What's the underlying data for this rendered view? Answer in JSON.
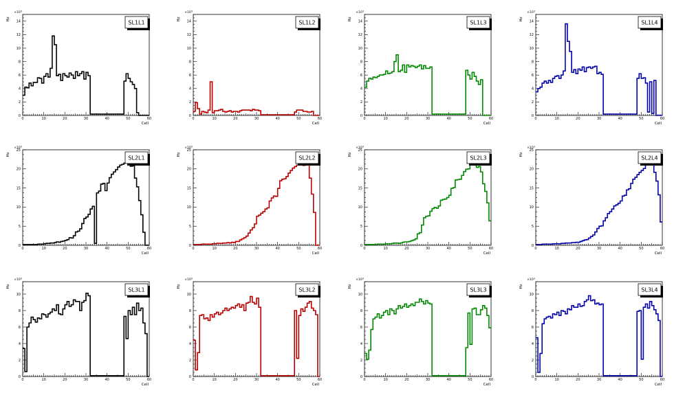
{
  "chart_data": [
    {
      "type": "histogram",
      "title": "SL1L1",
      "color": "#000000",
      "ylabel": "Hz",
      "xlabel": "Cell",
      "exponent": "3",
      "xlim": [
        0,
        60
      ],
      "ylim": [
        0,
        15
      ],
      "yticks": [
        0,
        2,
        4,
        6,
        8,
        10,
        12,
        14
      ],
      "values": [
        3.0,
        4.2,
        4.1,
        4.8,
        4.4,
        4.9,
        4.9,
        5.6,
        5.5,
        4.8,
        5.8,
        6.2,
        5.7,
        7.0,
        11.8,
        10.5,
        5.9,
        6.1,
        5.2,
        6.2,
        5.9,
        5.7,
        6.3,
        6.0,
        5.5,
        6.5,
        5.9,
        6.2,
        6.5,
        5.4,
        6.4,
        5.9,
        0.2,
        0.2,
        0.2,
        0.2,
        0.2,
        0.2,
        0.2,
        0.2,
        0.2,
        0.2,
        0.2,
        0.2,
        0.2,
        0.2,
        0.2,
        0.2,
        5.1,
        6.2,
        5.5,
        5.0,
        4.6,
        4.0,
        0.4,
        0,
        0,
        0,
        0,
        0
      ]
    },
    {
      "type": "histogram",
      "title": "SL1L2",
      "color": "#bb0000",
      "ylabel": "Hz",
      "xlabel": "Cell",
      "exponent": "3",
      "xlim": [
        0,
        60
      ],
      "ylim": [
        0,
        15
      ],
      "yticks": [
        0,
        2,
        4,
        6,
        8,
        10,
        12,
        14
      ],
      "values": [
        0.6,
        1.9,
        1.0,
        0.2,
        0.6,
        0.5,
        0.4,
        0.8,
        5.0,
        0.4,
        0.7,
        0.7,
        0.8,
        0.9,
        0.6,
        0.5,
        0.6,
        0.7,
        0.5,
        0.6,
        0.6,
        0.5,
        0.7,
        0.8,
        0.8,
        0.8,
        0.8,
        0.7,
        0.9,
        0.8,
        0.8,
        0.7,
        0.1,
        0.1,
        0.1,
        0.1,
        0.1,
        0.1,
        0.1,
        0.1,
        0.1,
        0.1,
        0.1,
        0.1,
        0.1,
        0.1,
        0.1,
        0.1,
        0.5,
        0.8,
        0.8,
        0.8,
        0.6,
        0.6,
        0.5,
        0.5,
        0.6,
        0,
        0,
        0
      ]
    },
    {
      "type": "histogram",
      "title": "SL1L3",
      "color": "#008800",
      "ylabel": "Hz",
      "xlabel": "Cell",
      "exponent": "3",
      "xlim": [
        0,
        60
      ],
      "ylim": [
        0,
        15
      ],
      "yticks": [
        0,
        2,
        4,
        6,
        8,
        10,
        12,
        14
      ],
      "values": [
        4.2,
        5.1,
        5.5,
        5.4,
        5.7,
        5.6,
        5.8,
        6.0,
        6.0,
        6.1,
        6.6,
        6.2,
        6.3,
        6.5,
        8.0,
        9.0,
        6.5,
        6.7,
        7.5,
        6.4,
        7.5,
        7.2,
        7.4,
        7.3,
        7.1,
        7.3,
        7.5,
        6.9,
        7.4,
        7.0,
        7.0,
        7.2,
        0.2,
        0.2,
        0.2,
        0.2,
        0.2,
        0.2,
        0.2,
        0.2,
        0.2,
        0.2,
        0.2,
        0.2,
        0.2,
        0.2,
        0.2,
        0.2,
        6.7,
        6.0,
        5.4,
        6.4,
        5.8,
        5.1,
        4.6,
        5.3,
        0,
        0,
        0,
        0
      ]
    },
    {
      "type": "histogram",
      "title": "SL1L4",
      "color": "#0000aa",
      "ylabel": "Hz",
      "xlabel": "Cell",
      "exponent": "3",
      "xlim": [
        0,
        60
      ],
      "ylim": [
        0,
        15
      ],
      "yticks": [
        0,
        2,
        4,
        6,
        8,
        10,
        12,
        14
      ],
      "values": [
        3.5,
        4.0,
        4.2,
        4.8,
        5.1,
        4.8,
        5.2,
        4.9,
        5.5,
        5.8,
        5.9,
        5.5,
        6.0,
        6.6,
        13.6,
        11.0,
        9.5,
        6.4,
        6.8,
        6.2,
        6.9,
        6.7,
        7.2,
        6.5,
        7.1,
        7.2,
        7.0,
        7.2,
        7.3,
        6.2,
        6.4,
        6.1,
        0.2,
        0.2,
        0.2,
        0.2,
        0.2,
        0.2,
        0.2,
        0.2,
        0.2,
        0.2,
        0.2,
        0.2,
        0.2,
        0.2,
        0.2,
        0.2,
        5.5,
        6.2,
        5.5,
        5.6,
        4.8,
        0.5,
        5.0,
        0.3,
        5.2,
        0,
        0,
        0
      ]
    },
    {
      "type": "histogram",
      "title": "SL2L1",
      "color": "#000000",
      "ylabel": "Hz",
      "xlabel": "Cell",
      "exponent": "3",
      "xlim": [
        0,
        60
      ],
      "ylim": [
        0,
        25
      ],
      "yticks": [
        0,
        5,
        10,
        15,
        20,
        25
      ],
      "values": [
        0.2,
        0.2,
        0.2,
        0.2,
        0.2,
        0.2,
        0.2,
        0.3,
        0.3,
        0.3,
        0.4,
        0.5,
        0.5,
        0.6,
        0.6,
        0.7,
        0.9,
        0.8,
        1.0,
        1.1,
        1.3,
        1.5,
        2.0,
        1.9,
        2.5,
        3.5,
        3.7,
        4.3,
        5.7,
        7.0,
        7.4,
        8.1,
        9.5,
        10.2,
        0.5,
        13.7,
        14.2,
        16.0,
        16.2,
        14.3,
        16.3,
        17.7,
        18.6,
        19.2,
        19.8,
        20.5,
        21.0,
        21.2,
        21.5,
        21.6,
        21.6,
        20.7,
        20.8,
        17.6,
        15.3,
        11.7,
        8.0,
        3.4,
        0,
        0
      ]
    },
    {
      "type": "histogram",
      "title": "SL2L2",
      "color": "#bb0000",
      "ylabel": "Hz",
      "xlabel": "Cell",
      "exponent": "3",
      "xlim": [
        0,
        60
      ],
      "ylim": [
        0,
        25
      ],
      "yticks": [
        0,
        5,
        10,
        15,
        20,
        25
      ],
      "values": [
        0.2,
        0.2,
        0.2,
        0.2,
        0.3,
        0.3,
        0.3,
        0.3,
        0.3,
        0.4,
        0.4,
        0.5,
        0.5,
        0.5,
        0.6,
        0.6,
        0.7,
        0.6,
        0.8,
        0.7,
        1.0,
        1.0,
        1.4,
        1.7,
        2.0,
        2.4,
        3.2,
        4.0,
        4.6,
        5.6,
        7.6,
        7.9,
        8.4,
        8.8,
        9.5,
        9.8,
        11.6,
        12.4,
        12.9,
        12.8,
        14.9,
        16.9,
        17.3,
        17.4,
        18.0,
        18.9,
        19.6,
        20.2,
        20.6,
        21.0,
        21.9,
        21.5,
        20.9,
        21.0,
        21.2,
        17.6,
        13.4,
        8.6,
        0,
        0
      ]
    },
    {
      "type": "histogram",
      "title": "SL2L3",
      "color": "#008800",
      "ylabel": "Hz",
      "xlabel": "Cell",
      "exponent": "3",
      "xlim": [
        0,
        60
      ],
      "ylim": [
        0,
        25
      ],
      "yticks": [
        0,
        5,
        10,
        15,
        20,
        25
      ],
      "values": [
        0.2,
        0.2,
        0.2,
        0.2,
        0.2,
        0.2,
        0.3,
        0.3,
        0.3,
        0.3,
        0.4,
        0.4,
        0.4,
        0.5,
        0.6,
        0.6,
        0.5,
        0.6,
        0.8,
        0.9,
        0.9,
        1.0,
        1.2,
        1.4,
        1.7,
        3.0,
        3.3,
        5.3,
        7.2,
        7.6,
        7.7,
        8.9,
        9.6,
        9.9,
        9.7,
        10.3,
        11.8,
        12.0,
        12.1,
        12.5,
        13.1,
        14.9,
        15.1,
        17.1,
        17.2,
        17.3,
        18.3,
        19.3,
        19.9,
        20.0,
        21.0,
        21.5,
        21.3,
        20.4,
        20.6,
        19.2,
        16.1,
        14.1,
        11.1,
        6.4
      ]
    },
    {
      "type": "histogram",
      "title": "SL2L4",
      "color": "#0000aa",
      "ylabel": "Hz",
      "xlabel": "Cell",
      "exponent": "3",
      "xlim": [
        0,
        60
      ],
      "ylim": [
        0,
        25
      ],
      "yticks": [
        0,
        5,
        10,
        15,
        20,
        25
      ],
      "values": [
        0.2,
        0.2,
        0.2,
        0.3,
        0.3,
        0.3,
        0.3,
        0.3,
        0.4,
        0.4,
        0.4,
        0.4,
        0.5,
        0.5,
        0.6,
        0.6,
        0.6,
        0.7,
        0.7,
        0.8,
        0.8,
        1.0,
        1.2,
        1.4,
        1.5,
        1.9,
        2.3,
        2.7,
        3.5,
        4.4,
        5.0,
        5.1,
        6.4,
        7.2,
        8.3,
        8.8,
        9.5,
        10.3,
        10.6,
        11.0,
        11.6,
        12.9,
        13.1,
        14.5,
        14.8,
        16.2,
        17.3,
        17.8,
        18.5,
        19.1,
        19.6,
        20.1,
        21.0,
        22.0,
        22.5,
        21.3,
        19.1,
        16.8,
        13.2,
        6.1
      ]
    },
    {
      "type": "histogram",
      "title": "SL3L1",
      "color": "#000000",
      "ylabel": "Hz",
      "xlabel": "Cell",
      "exponent": "3",
      "xlim": [
        0,
        60
      ],
      "ylim": [
        0,
        11.5
      ],
      "yticks": [
        0,
        2,
        4,
        6,
        8,
        10
      ],
      "values": [
        3.4,
        0.6,
        6.0,
        6.5,
        7.2,
        6.9,
        6.6,
        7.1,
        7.0,
        7.6,
        7.5,
        7.2,
        7.6,
        7.8,
        8.2,
        8.0,
        8.7,
        7.6,
        7.5,
        8.2,
        8.7,
        9.1,
        8.5,
        8.7,
        9.3,
        9.1,
        9.1,
        8.0,
        9.0,
        9.2,
        10.1,
        9.8,
        0.1,
        0.1,
        0.1,
        0.1,
        0.1,
        0.1,
        0.1,
        0.1,
        0.1,
        0.1,
        0.1,
        0.1,
        0.1,
        0.1,
        0.1,
        0.1,
        7.3,
        4.6,
        8.0,
        7.5,
        8.4,
        7.5,
        8.9,
        8.0,
        8.3,
        6.5,
        5.2,
        0
      ]
    },
    {
      "type": "histogram",
      "title": "SL3L2",
      "color": "#bb0000",
      "ylabel": "Hz",
      "xlabel": "Cell",
      "exponent": "3",
      "xlim": [
        0,
        60
      ],
      "ylim": [
        0,
        11.5
      ],
      "yticks": [
        0,
        2,
        4,
        6,
        8,
        10
      ],
      "values": [
        4.4,
        0.8,
        2.9,
        7.4,
        7.5,
        7.0,
        7.1,
        6.8,
        7.5,
        7.2,
        7.6,
        7.8,
        7.5,
        7.7,
        8.0,
        8.3,
        8.0,
        8.2,
        8.4,
        8.3,
        8.6,
        8.8,
        8.4,
        8.7,
        8.0,
        8.9,
        9.0,
        9.7,
        9.0,
        8.8,
        9.5,
        8.4,
        0.1,
        0.1,
        0.1,
        0.1,
        0.1,
        0.1,
        0.1,
        0.1,
        0.1,
        0.1,
        0.1,
        0.1,
        0.1,
        0.1,
        0.1,
        0.1,
        8.0,
        2.2,
        7.4,
        8.2,
        7.9,
        8.4,
        8.9,
        9.1,
        8.3,
        8.0,
        7.5,
        0
      ]
    },
    {
      "type": "histogram",
      "title": "SL3L3",
      "color": "#008800",
      "ylabel": "Hz",
      "xlabel": "Cell",
      "exponent": "3",
      "xlim": [
        0,
        60
      ],
      "ylim": [
        0,
        11.5
      ],
      "yticks": [
        0,
        2,
        4,
        6,
        8,
        10
      ],
      "values": [
        2.8,
        2.1,
        3.2,
        5.7,
        7.0,
        7.2,
        7.6,
        7.1,
        7.4,
        7.8,
        8.0,
        7.5,
        8.2,
        8.0,
        7.6,
        8.2,
        8.6,
        8.3,
        8.5,
        8.8,
        8.4,
        8.6,
        8.8,
        8.6,
        9.0,
        9.0,
        9.4,
        9.1,
        8.8,
        9.2,
        8.9,
        8.8,
        0.1,
        0.1,
        0.1,
        0.1,
        0.1,
        0.1,
        0.1,
        0.1,
        0.1,
        0.1,
        0.1,
        0.1,
        0.1,
        0.1,
        0.1,
        0.1,
        3.5,
        7.7,
        3.9,
        8.2,
        8.3,
        7.5,
        7.5,
        8.1,
        8.6,
        8.3,
        7.4,
        5.9
      ]
    },
    {
      "type": "histogram",
      "title": "SL3L4",
      "color": "#0000aa",
      "ylabel": "Hz",
      "xlabel": "Cell",
      "exponent": "3",
      "xlim": [
        0,
        60
      ],
      "ylim": [
        0,
        11.5
      ],
      "yticks": [
        0,
        2,
        4,
        6,
        8,
        10
      ],
      "values": [
        4.7,
        0.5,
        2.8,
        6.4,
        7.0,
        7.2,
        7.3,
        7.1,
        7.6,
        7.5,
        7.8,
        7.4,
        8.0,
        7.9,
        7.6,
        8.2,
        8.1,
        8.6,
        8.4,
        8.4,
        8.8,
        8.5,
        8.6,
        9.1,
        9.3,
        9.8,
        9.2,
        9.3,
        8.8,
        8.9,
        8.7,
        8.8,
        0.1,
        0.1,
        0.1,
        0.1,
        0.1,
        0.1,
        0.1,
        0.1,
        0.1,
        0.1,
        0.1,
        0.1,
        0.1,
        0.1,
        0.1,
        0.1,
        7.9,
        8.0,
        2.1,
        8.4,
        8.8,
        8.3,
        9.1,
        8.6,
        8.1,
        7.6,
        6.8,
        0
      ]
    }
  ]
}
